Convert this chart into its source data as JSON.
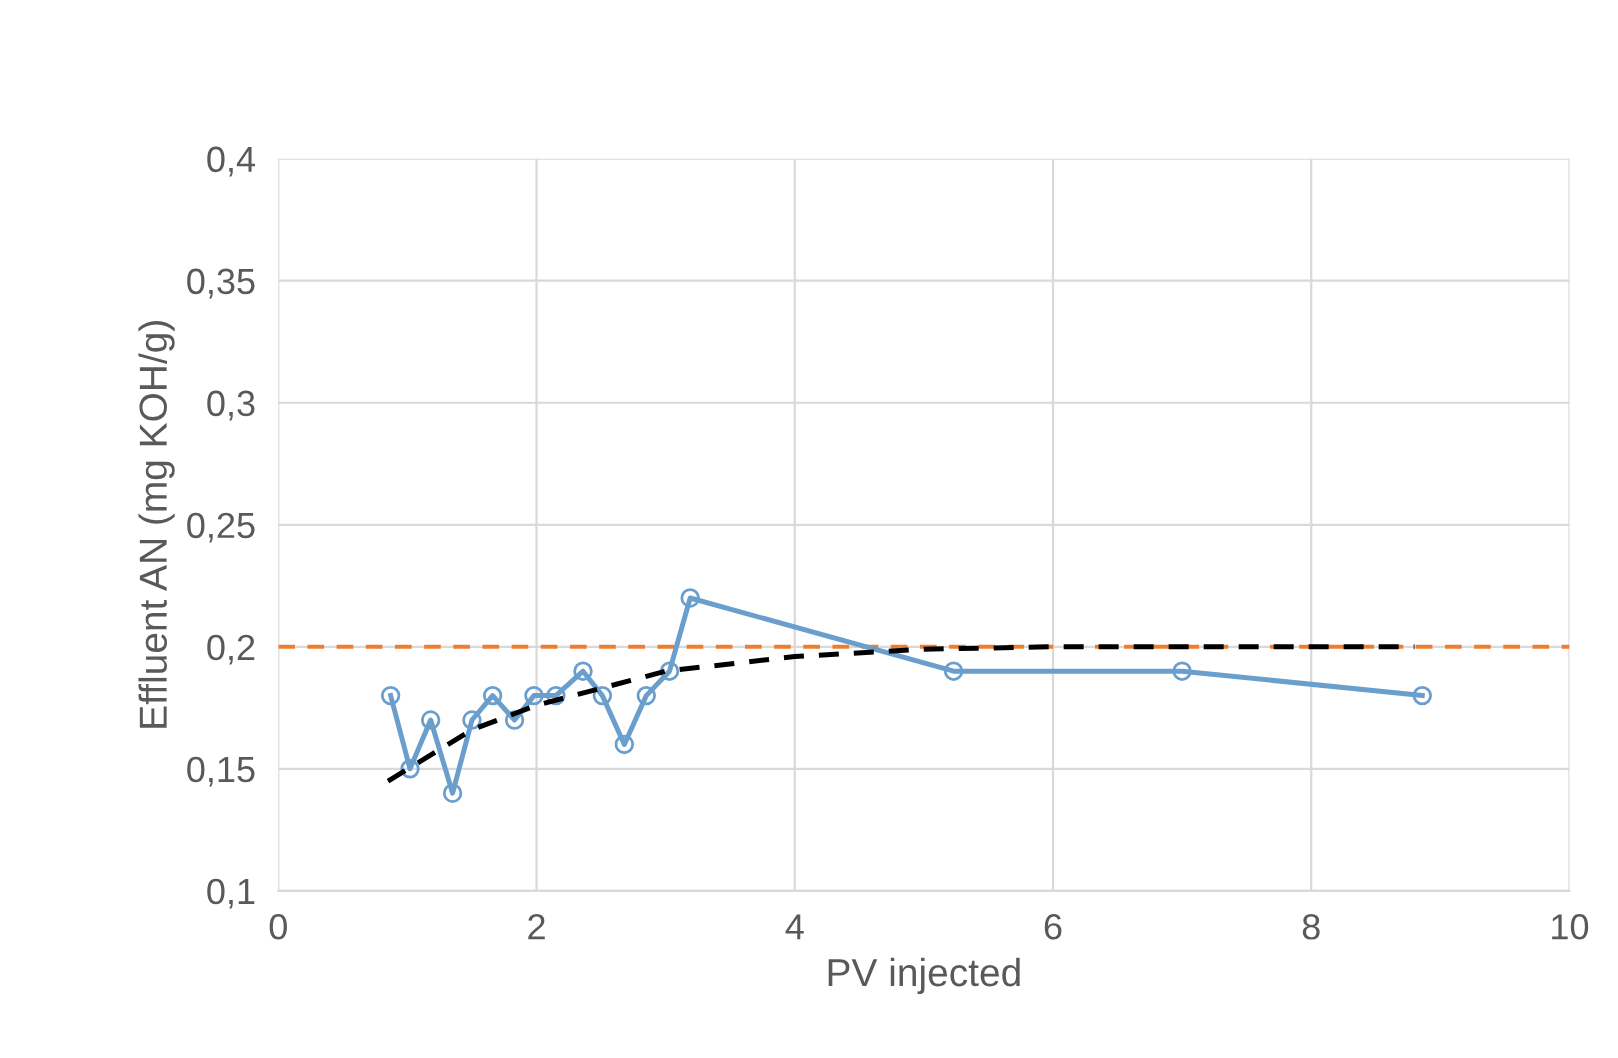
{
  "chart_data": {
    "type": "line",
    "xlabel": "PV injected",
    "ylabel": "Effluent AN (mg KOH/g)",
    "xlim": [
      0,
      10
    ],
    "xticks": [
      0,
      2,
      4,
      6,
      8,
      10
    ],
    "ylim": [
      0.1,
      0.4
    ],
    "yticks": [
      {
        "value": 0.1,
        "label": "0,1"
      },
      {
        "value": 0.15,
        "label": "0,15"
      },
      {
        "value": 0.2,
        "label": "0,2"
      },
      {
        "value": 0.25,
        "label": "0,25"
      },
      {
        "value": 0.3,
        "label": "0,3"
      },
      {
        "value": 0.35,
        "label": "0,35"
      },
      {
        "value": 0.4,
        "label": "0,4"
      }
    ],
    "grid": true,
    "series": [
      {
        "color": "#6a9fcd",
        "marker": "circle",
        "line_style": "solid",
        "x": [
          0.87,
          1.02,
          1.18,
          1.35,
          1.5,
          1.66,
          1.83,
          1.98,
          2.15,
          2.36,
          2.51,
          2.68,
          2.85,
          3.03,
          3.19,
          5.23,
          7.0,
          8.86
        ],
        "values": [
          0.18,
          0.15,
          0.17,
          0.14,
          0.17,
          0.18,
          0.17,
          0.18,
          0.18,
          0.19,
          0.18,
          0.16,
          0.18,
          0.19,
          0.22,
          0.19,
          0.19,
          0.18
        ]
      },
      {
        "color": "#000000",
        "marker": "none",
        "line_style": "dashed",
        "x": [
          0.85,
          1.5,
          2,
          2.5,
          3,
          4,
          5,
          6,
          7,
          8.8
        ],
        "values": [
          0.145,
          0.166,
          0.176,
          0.183,
          0.19,
          0.196,
          0.199,
          0.2,
          0.2,
          0.2
        ]
      }
    ],
    "ref_lines": [
      {
        "axis": "y",
        "value": 0.2,
        "color": "#ed7d31",
        "line_style": "dashed"
      }
    ]
  }
}
